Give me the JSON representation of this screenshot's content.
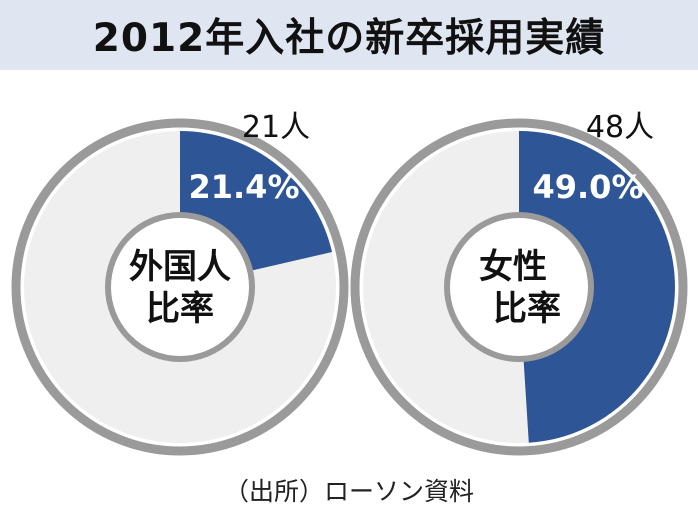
{
  "title": "2012年入社の新卒採用実績",
  "source": "（出所）ローソン資料",
  "colors": {
    "slice": "#2e5596",
    "remainder": "#efefef",
    "ring": "#9a9a9a",
    "label_on_slice": "#ffffff"
  },
  "chart_data": [
    {
      "type": "pie",
      "style": "donut",
      "center_label": [
        "外国人",
        "比率"
      ],
      "count_label": "21人",
      "value_label": "21.4%",
      "values": [
        21.4,
        78.6
      ]
    },
    {
      "type": "pie",
      "style": "donut",
      "center_label": [
        "女性",
        "比率"
      ],
      "count_label": "48人",
      "value_label": "49.0%",
      "values": [
        49.0,
        51.0
      ]
    }
  ]
}
